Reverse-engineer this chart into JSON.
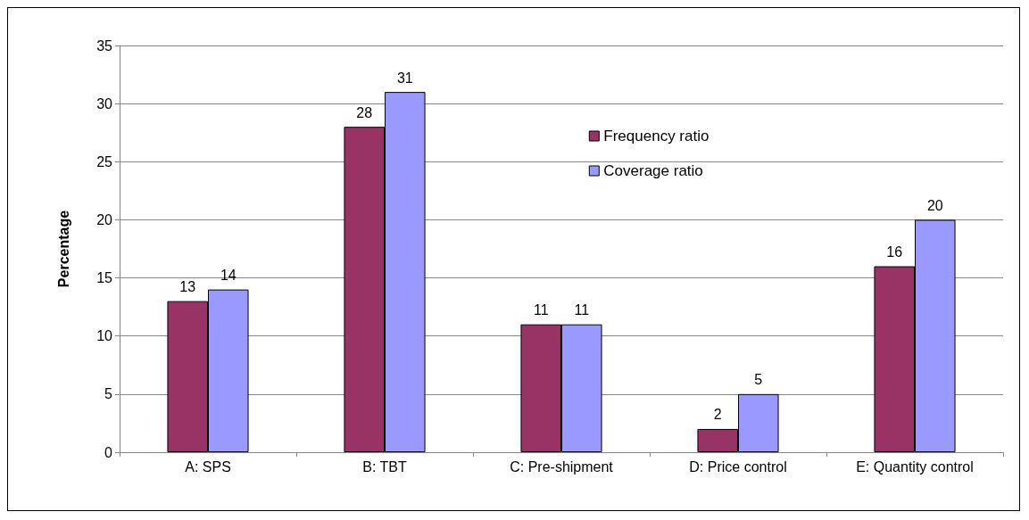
{
  "chart_data": {
    "type": "bar",
    "ylabel": "Percentage",
    "categories": [
      "A: SPS",
      "B: TBT",
      "C: Pre-shipment",
      "D: Price control",
      "E: Quantity control"
    ],
    "series": [
      {
        "name": "Frequency ratio",
        "color": "#993366",
        "values": [
          13,
          28,
          11,
          2,
          16
        ]
      },
      {
        "name": "Coverage ratio",
        "color": "#9999ff",
        "values": [
          14,
          31,
          11,
          5,
          20
        ]
      }
    ],
    "ylim": [
      0,
      35
    ],
    "yticks": [
      0,
      5,
      10,
      15,
      20,
      25,
      30,
      35
    ],
    "grid": "y",
    "legend": "top",
    "data_labels": true
  }
}
